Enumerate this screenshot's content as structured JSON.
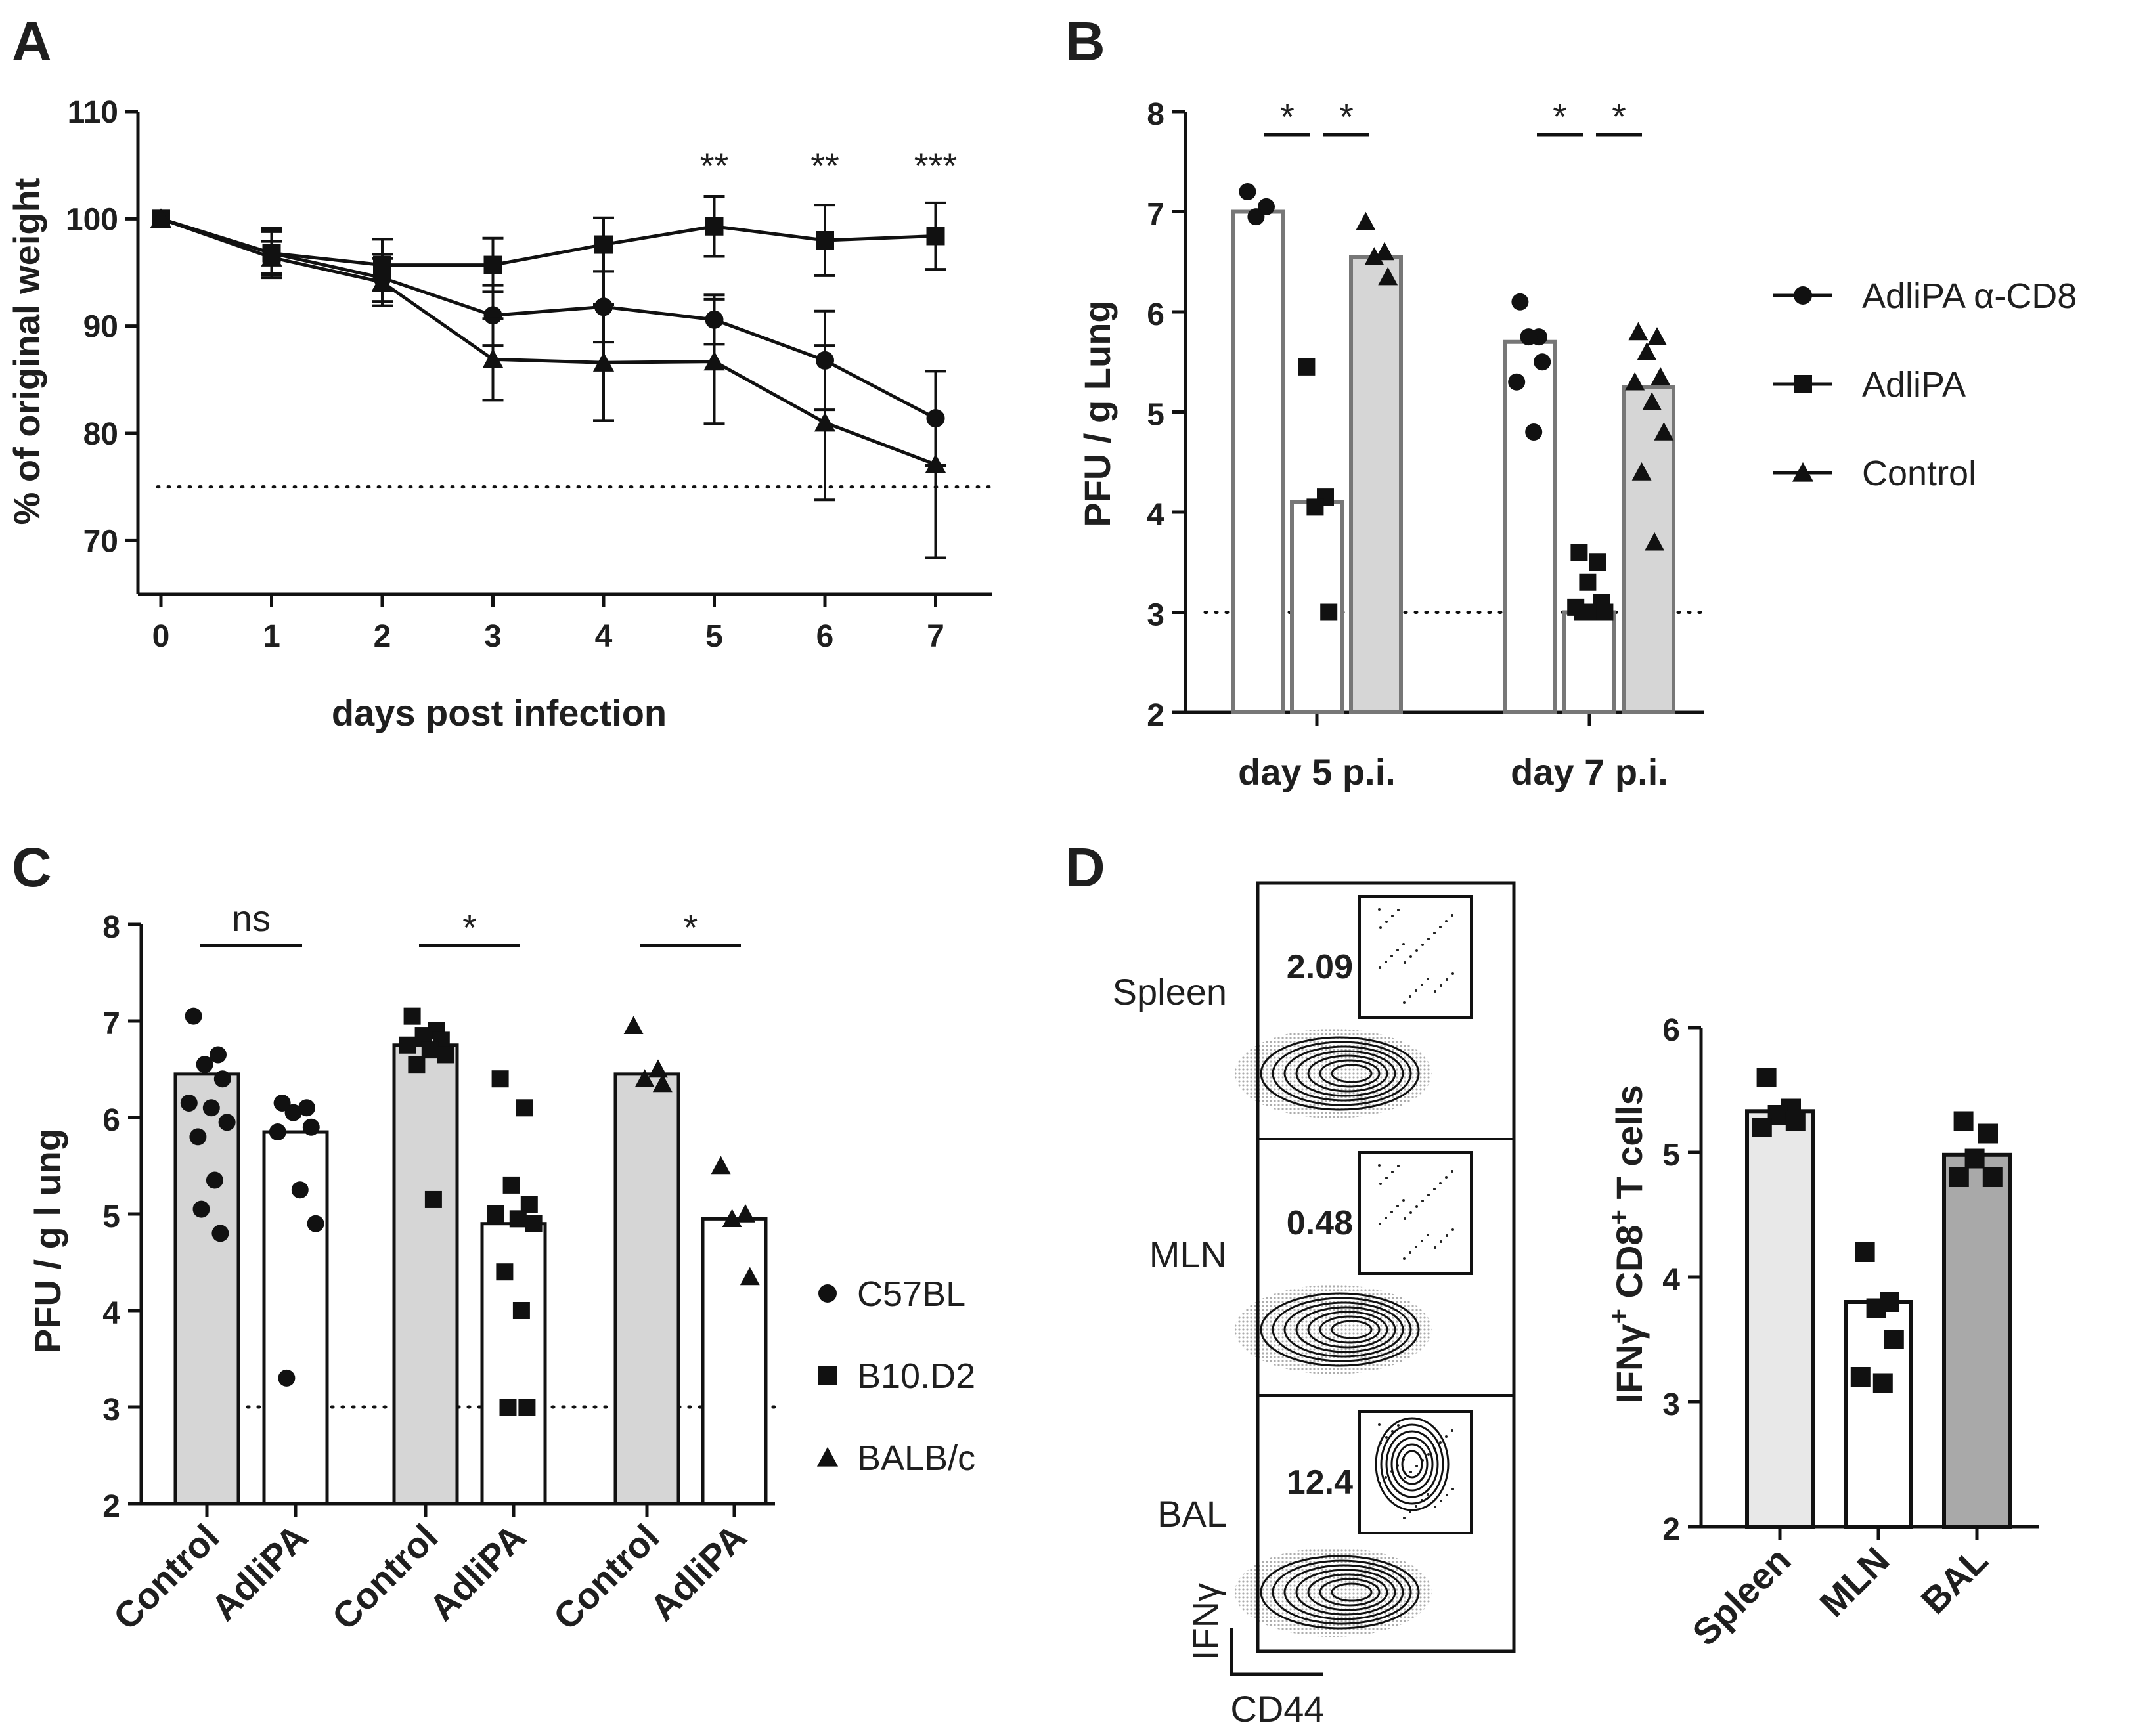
{
  "figure": [
    {
      "panel": "A",
      "chart_data": {
        "type": "line",
        "xlabel": "days post infection",
        "ylabel": "% of original weight",
        "x": [
          0,
          1,
          2,
          3,
          4,
          5,
          6,
          7
        ],
        "xticks": [
          "0",
          "1",
          "2",
          "3",
          "4",
          "5",
          "6",
          "7"
        ],
        "yticks": [
          "70",
          "80",
          "90",
          "100",
          "110"
        ],
        "ylim": [
          65,
          110
        ],
        "threshold": 75,
        "series": [
          {
            "name": "AdliPA α-CD8",
            "marker": "circle",
            "values": [
              100,
              96.8,
              94.5,
              91.0,
              91.8,
              90.6,
              86.8,
              81.4
            ],
            "err": [
              0,
              2.0,
              2.2,
              2.8,
              3.3,
              2.3,
              4.6,
              4.4
            ]
          },
          {
            "name": "AdliPA",
            "marker": "square",
            "values": [
              100,
              96.8,
              95.7,
              95.7,
              97.6,
              99.3,
              98.0,
              98.4
            ],
            "err": [
              0,
              2.3,
              2.4,
              2.5,
              2.5,
              2.8,
              3.3,
              3.1
            ]
          },
          {
            "name": "Control",
            "marker": "triangle",
            "values": [
              100,
              96.4,
              94.1,
              86.9,
              86.6,
              86.7,
              81.0,
              77.1
            ],
            "err": [
              0,
              1.5,
              2.2,
              3.8,
              5.4,
              5.8,
              7.2,
              8.7
            ]
          }
        ],
        "significance": [
          {
            "x": 5,
            "label": "**"
          },
          {
            "x": 6,
            "label": "**"
          },
          {
            "x": 7,
            "label": "***"
          }
        ]
      }
    },
    {
      "panel": "B",
      "chart_data": {
        "type": "bar",
        "ylabel": "PFU / g Lung",
        "categories": [
          "day 5 p.i.",
          "day 7 p.i."
        ],
        "yticks": [
          "2",
          "3",
          "4",
          "5",
          "6",
          "7",
          "8"
        ],
        "ylim": [
          2,
          8
        ],
        "threshold": 3,
        "series": [
          {
            "name": "AdliPA α-CD8",
            "marker": "circle",
            "fill": "#ffffff",
            "values": [
              7.0,
              5.7
            ],
            "points": [
              [
                7.2,
                7.05,
                6.95
              ],
              [
                6.1,
                5.75,
                5.75,
                5.5,
                5.3,
                4.8
              ]
            ]
          },
          {
            "name": "AdliPA",
            "marker": "square",
            "fill": "#ffffff",
            "values": [
              4.1,
              3.0
            ],
            "points": [
              [
                5.45,
                4.15,
                4.05,
                3.0
              ],
              [
                3.6,
                3.5,
                3.3,
                3.1,
                3.05,
                3.0,
                3.0,
                3.0
              ]
            ]
          },
          {
            "name": "Control",
            "marker": "triangle",
            "fill": "#d6d6d6",
            "values": [
              6.55,
              5.25
            ],
            "points": [
              [
                6.9,
                6.6,
                6.55,
                6.35
              ],
              [
                5.8,
                5.75,
                5.6,
                5.35,
                5.3,
                5.1,
                4.8,
                4.4,
                3.7
              ]
            ]
          }
        ],
        "significance": [
          {
            "group": 0,
            "from": 0,
            "to": 1,
            "label": "*"
          },
          {
            "group": 0,
            "from": 1,
            "to": 2,
            "label": "*"
          },
          {
            "group": 1,
            "from": 0,
            "to": 1,
            "label": "*"
          },
          {
            "group": 1,
            "from": 1,
            "to": 2,
            "label": "*"
          }
        ],
        "legend": [
          "AdliPA α-CD8",
          "AdliPA",
          "Control"
        ]
      }
    },
    {
      "panel": "C",
      "chart_data": {
        "type": "bar",
        "ylabel": "PFU / g l ung",
        "categories": [
          "Control",
          "AdliPA",
          "Control",
          "AdliPA",
          "Control",
          "AdliPA"
        ],
        "yticks": [
          "2",
          "3",
          "4",
          "5",
          "6",
          "7",
          "8"
        ],
        "ylim": [
          2,
          8
        ],
        "threshold": 3,
        "groups": [
          {
            "strain": "C57BL",
            "marker": "circle",
            "bars": [
              {
                "label": "Control",
                "fill": "#d6d6d6",
                "value": 6.45,
                "points": [
                  7.05,
                  6.65,
                  6.55,
                  6.4,
                  6.15,
                  6.1,
                  5.95,
                  5.8,
                  5.35,
                  5.05,
                  4.8
                ]
              },
              {
                "label": "AdliPA",
                "fill": "#ffffff",
                "value": 5.85,
                "points": [
                  6.15,
                  6.1,
                  6.05,
                  5.9,
                  5.85,
                  5.25,
                  4.9,
                  3.3
                ]
              }
            ]
          },
          {
            "strain": "B10.D2",
            "marker": "square",
            "bars": [
              {
                "label": "Control",
                "fill": "#d6d6d6",
                "value": 6.75,
                "points": [
                  7.05,
                  6.9,
                  6.85,
                  6.8,
                  6.75,
                  6.7,
                  6.65,
                  6.55,
                  5.15
                ]
              },
              {
                "label": "AdliPA",
                "fill": "#ffffff",
                "value": 4.9,
                "points": [
                  6.4,
                  6.1,
                  5.3,
                  5.1,
                  5.0,
                  4.95,
                  4.9,
                  4.4,
                  4.0,
                  3.0,
                  3.0
                ]
              }
            ]
          },
          {
            "strain": "BALB/c",
            "marker": "triangle",
            "bars": [
              {
                "label": "Control",
                "fill": "#d6d6d6",
                "value": 6.45,
                "points": [
                  6.95,
                  6.5,
                  6.4,
                  6.35
                ]
              },
              {
                "label": "AdliPA",
                "fill": "#ffffff",
                "value": 4.95,
                "points": [
                  5.5,
                  5.0,
                  4.95,
                  4.35
                ]
              }
            ]
          }
        ],
        "significance": [
          {
            "group": 0,
            "label": "ns"
          },
          {
            "group": 1,
            "label": "*"
          },
          {
            "group": 2,
            "label": "*"
          }
        ],
        "legend": [
          "C57BL",
          "B10.D2",
          "BALB/c"
        ]
      }
    },
    {
      "panel": "D",
      "flow": {
        "samples": [
          {
            "label": "Spleen",
            "gate": "2.09"
          },
          {
            "label": "MLN",
            "gate": "0.48"
          },
          {
            "label": "BAL",
            "gate": "12.4"
          }
        ],
        "x_axis": "CD44",
        "y_axis": "IFNγ"
      },
      "chart_data": {
        "type": "bar",
        "ylabel_main": "IFNγ",
        "ylabel_sup1": "+",
        "ylabel_mid": " CD8",
        "ylabel_sup2": "+",
        "ylabel_end": " T cells",
        "ylabel": "IFNγ+ CD8+ T cells",
        "categories": [
          "Spleen",
          "MLN",
          "BAL"
        ],
        "yticks": [
          "2",
          "3",
          "4",
          "5",
          "6"
        ],
        "ylim": [
          2,
          6
        ],
        "series": [
          {
            "name": "Spleen",
            "fill": "#e8e8e8",
            "value": 5.33,
            "points": [
              5.6,
              5.35,
              5.3,
              5.25,
              5.2
            ]
          },
          {
            "name": "MLN",
            "fill": "#ffffff",
            "value": 3.8,
            "points": [
              4.2,
              3.8,
              3.75,
              3.5,
              3.2,
              3.15
            ]
          },
          {
            "name": "BAL",
            "fill": "#a9a9a9",
            "value": 4.98,
            "points": [
              5.25,
              5.15,
              4.95,
              4.8,
              4.8
            ]
          }
        ]
      }
    }
  ]
}
